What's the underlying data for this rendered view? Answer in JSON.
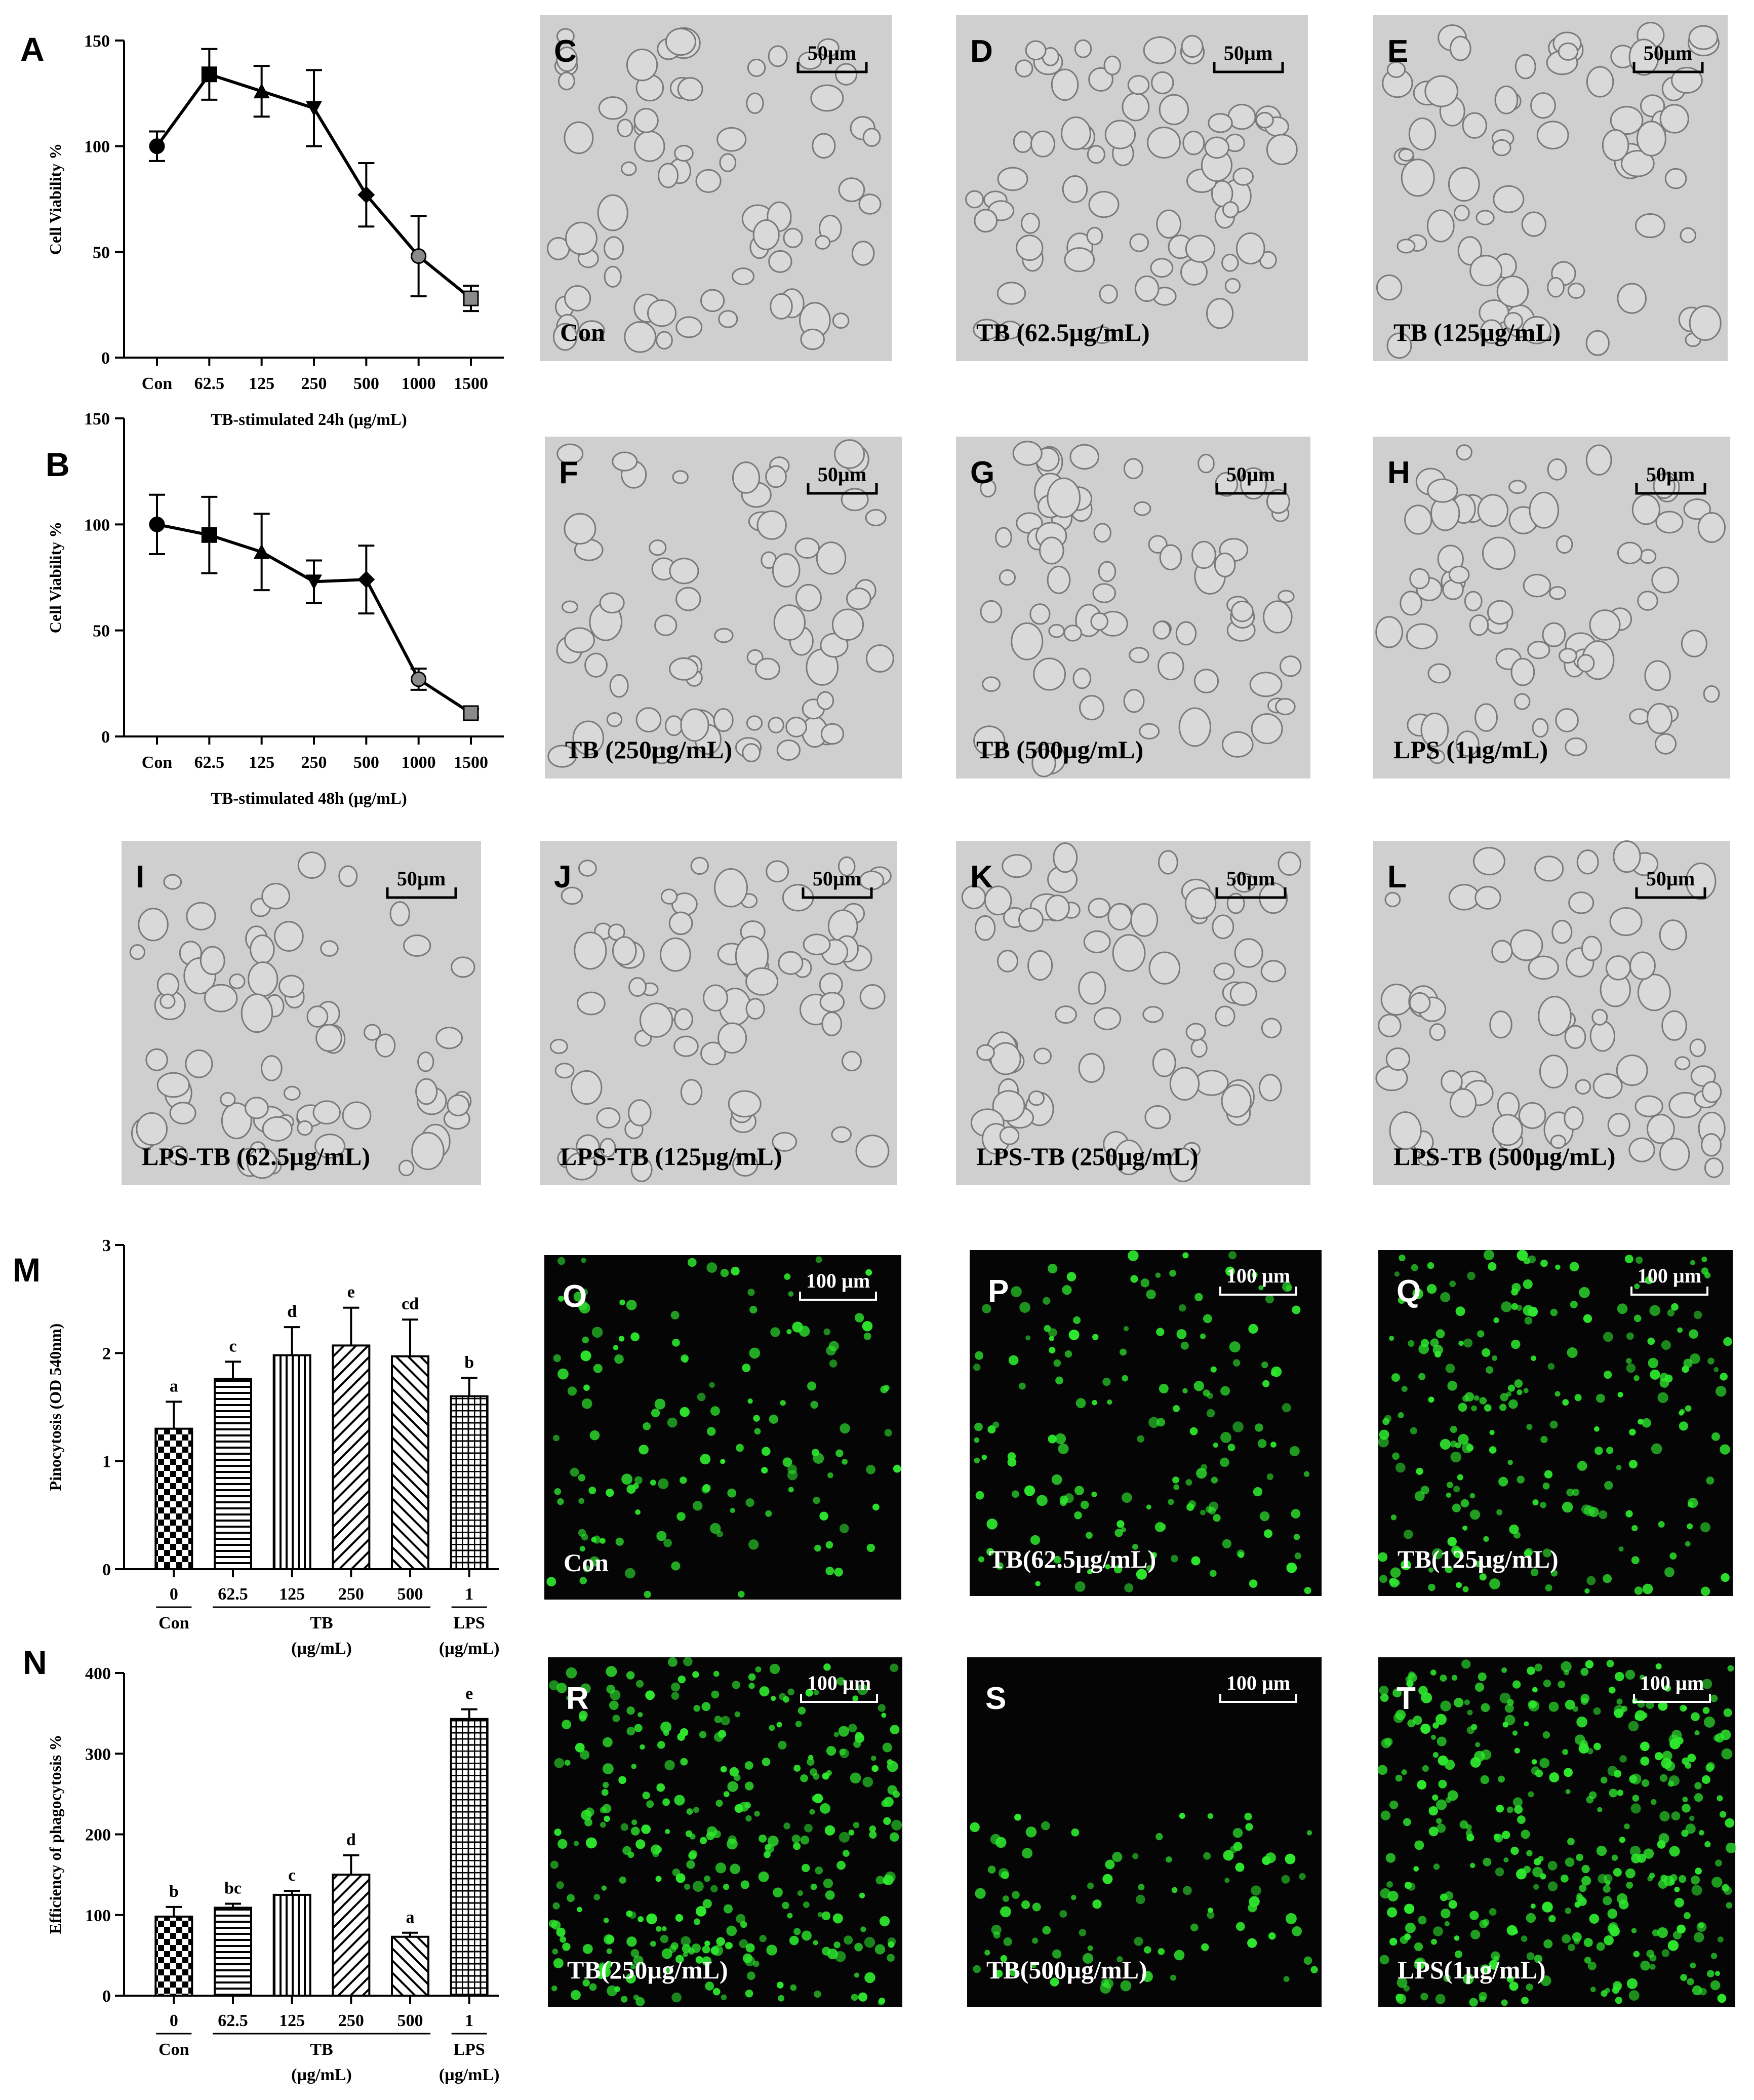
{
  "figure": {
    "background": "#ffffff",
    "micrograph_bg_light": "#cfcfcf",
    "micrograph_cell_stroke": "#7a7a7a",
    "fluor_bg": "#050505",
    "fluor_cell": "#2ee82e"
  },
  "chart_data": [
    {
      "id": "A",
      "type": "line",
      "panel_label": "A",
      "categories": [
        "Con",
        "62.5",
        "125",
        "250",
        "500",
        "1000",
        "1500"
      ],
      "values": [
        100,
        134,
        126,
        118,
        77,
        48,
        28
      ],
      "errors": [
        7,
        12,
        12,
        18,
        15,
        19,
        6
      ],
      "markers": [
        "circle",
        "square",
        "triangle-up",
        "triangle-down",
        "diamond",
        "circle-grey",
        "square-grey"
      ],
      "ylabel": "Cell Viability %",
      "xlabel": "TB-stimulated 24h (µg/mL)",
      "ylim": [
        0,
        150
      ],
      "yticks": [
        0,
        50,
        100,
        150
      ]
    },
    {
      "id": "B",
      "type": "line",
      "panel_label": "B",
      "categories": [
        "Con",
        "62.5",
        "125",
        "250",
        "500",
        "1000",
        "1500"
      ],
      "values": [
        100,
        95,
        87,
        73,
        74,
        27,
        11
      ],
      "errors": [
        14,
        18,
        18,
        10,
        16,
        5,
        2
      ],
      "markers": [
        "circle",
        "square",
        "triangle-up",
        "triangle-down",
        "diamond",
        "circle-grey",
        "square-grey"
      ],
      "ylabel": "Cell Viability %",
      "xlabel": "TB-stimulated 48h (µg/mL)",
      "ylim": [
        0,
        150
      ],
      "yticks": [
        0,
        50,
        100,
        150
      ]
    },
    {
      "id": "M",
      "type": "bar",
      "panel_label": "M",
      "categories": [
        "0",
        "62.5",
        "125",
        "250",
        "500",
        "1"
      ],
      "values": [
        1.3,
        1.76,
        1.98,
        2.07,
        1.97,
        1.6
      ],
      "errors": [
        0.25,
        0.16,
        0.26,
        0.35,
        0.34,
        0.17
      ],
      "letters": [
        "a",
        "c",
        "d",
        "e",
        "cd",
        "b"
      ],
      "patterns": [
        "checker",
        "hlines",
        "vlines",
        "diag-left",
        "diag-right",
        "grid"
      ],
      "group_labels": {
        "con": "Con",
        "tb": "TB",
        "tb_unit": "(µg/mL)",
        "lps": "LPS",
        "lps_unit": "(µg/mL)"
      },
      "ylabel": "Pinocytosis (OD 540nm)",
      "ylim": [
        0,
        3
      ],
      "yticks": [
        0,
        1,
        2,
        3
      ]
    },
    {
      "id": "N",
      "type": "bar",
      "panel_label": "N",
      "categories": [
        "0",
        "62.5",
        "125",
        "250",
        "500",
        "1"
      ],
      "values": [
        98,
        109,
        125,
        150,
        73,
        343
      ],
      "errors": [
        12,
        5,
        5,
        24,
        5,
        12
      ],
      "letters": [
        "b",
        "bc",
        "c",
        "d",
        "a",
        "e"
      ],
      "patterns": [
        "checker",
        "hlines",
        "vlines",
        "diag-left",
        "diag-right",
        "grid"
      ],
      "group_labels": {
        "con": "Con",
        "tb": "TB",
        "tb_unit": "(µg/mL)",
        "lps": "LPS",
        "lps_unit": "(µg/mL)"
      },
      "ylabel": "Efficiency of phagocytosis %",
      "ylim": [
        0,
        400
      ],
      "yticks": [
        0,
        100,
        200,
        300,
        400
      ]
    }
  ],
  "micrographs": [
    {
      "letter": "C",
      "caption": "Con",
      "scale": "50µm"
    },
    {
      "letter": "D",
      "caption": "TB (62.5µg/mL)",
      "scale": "50µm"
    },
    {
      "letter": "E",
      "caption": "TB (125µg/mL)",
      "scale": "50µm"
    },
    {
      "letter": "F",
      "caption": "TB (250µg/mL)",
      "scale": "50µm"
    },
    {
      "letter": "G",
      "caption": "TB (500µg/mL)",
      "scale": "50µm"
    },
    {
      "letter": "H",
      "caption": "LPS (1µg/mL)",
      "scale": "50µm"
    },
    {
      "letter": "I",
      "caption": "LPS-TB (62.5µg/mL)",
      "scale": "50µm"
    },
    {
      "letter": "J",
      "caption": "LPS-TB (125µg/mL)",
      "scale": "50µm"
    },
    {
      "letter": "K",
      "caption": "LPS-TB (250µg/mL)",
      "scale": "50µm"
    },
    {
      "letter": "L",
      "caption": "LPS-TB (500µg/mL)",
      "scale": "50µm"
    }
  ],
  "fluorescence": [
    {
      "letter": "O",
      "caption": "Con",
      "scale": "100 µm"
    },
    {
      "letter": "P",
      "caption": "TB(62.5µg/mL)",
      "scale": "100 µm"
    },
    {
      "letter": "Q",
      "caption": "TB(125µg/mL)",
      "scale": "100 µm"
    },
    {
      "letter": "R",
      "caption": "TB(250µg/mL)",
      "scale": "100 µm"
    },
    {
      "letter": "S",
      "caption": "TB(500µg/mL)",
      "scale": "100 µm"
    },
    {
      "letter": "T",
      "caption": "LPS(1µg/mL)",
      "scale": "100 µm"
    }
  ]
}
